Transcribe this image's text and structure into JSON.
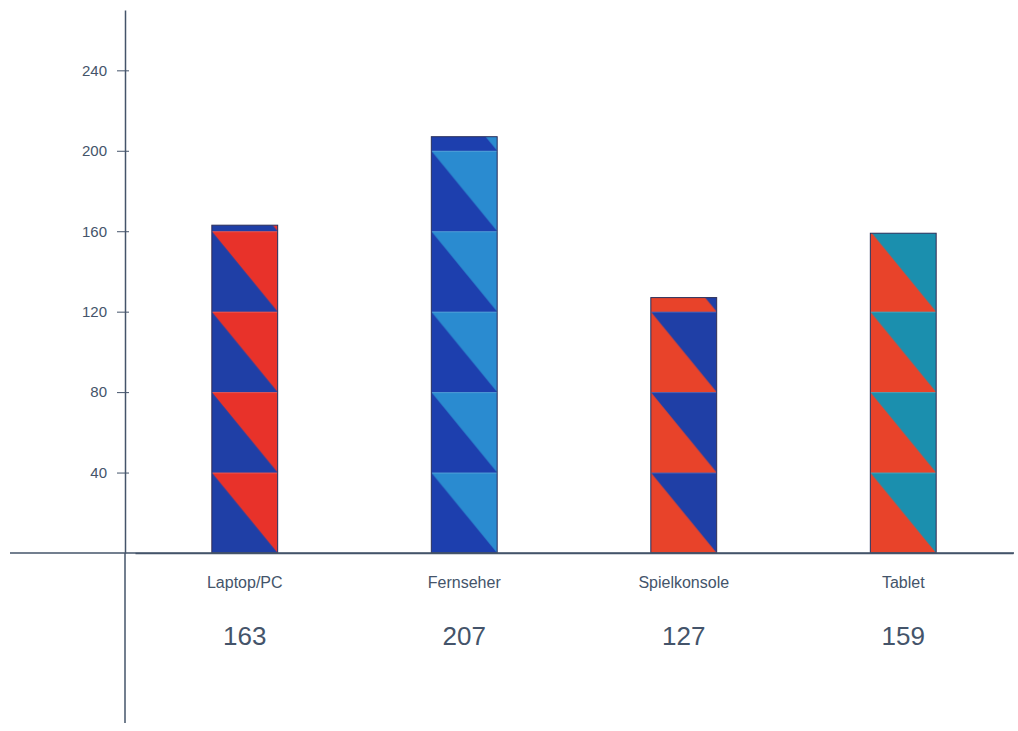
{
  "chart_data": {
    "type": "bar",
    "categories": [
      "Laptop/PC",
      "Fernseher",
      "Spielkonsole",
      "Tablet"
    ],
    "values": [
      163,
      207,
      127,
      159
    ],
    "colors": [
      "#1f3fa6",
      "#1d3fae",
      "#e8432a",
      "#e8432a"
    ],
    "ylim": [
      0,
      270
    ],
    "yticks": [
      40,
      80,
      120,
      160,
      200,
      240
    ],
    "data_labels": true
  }
}
